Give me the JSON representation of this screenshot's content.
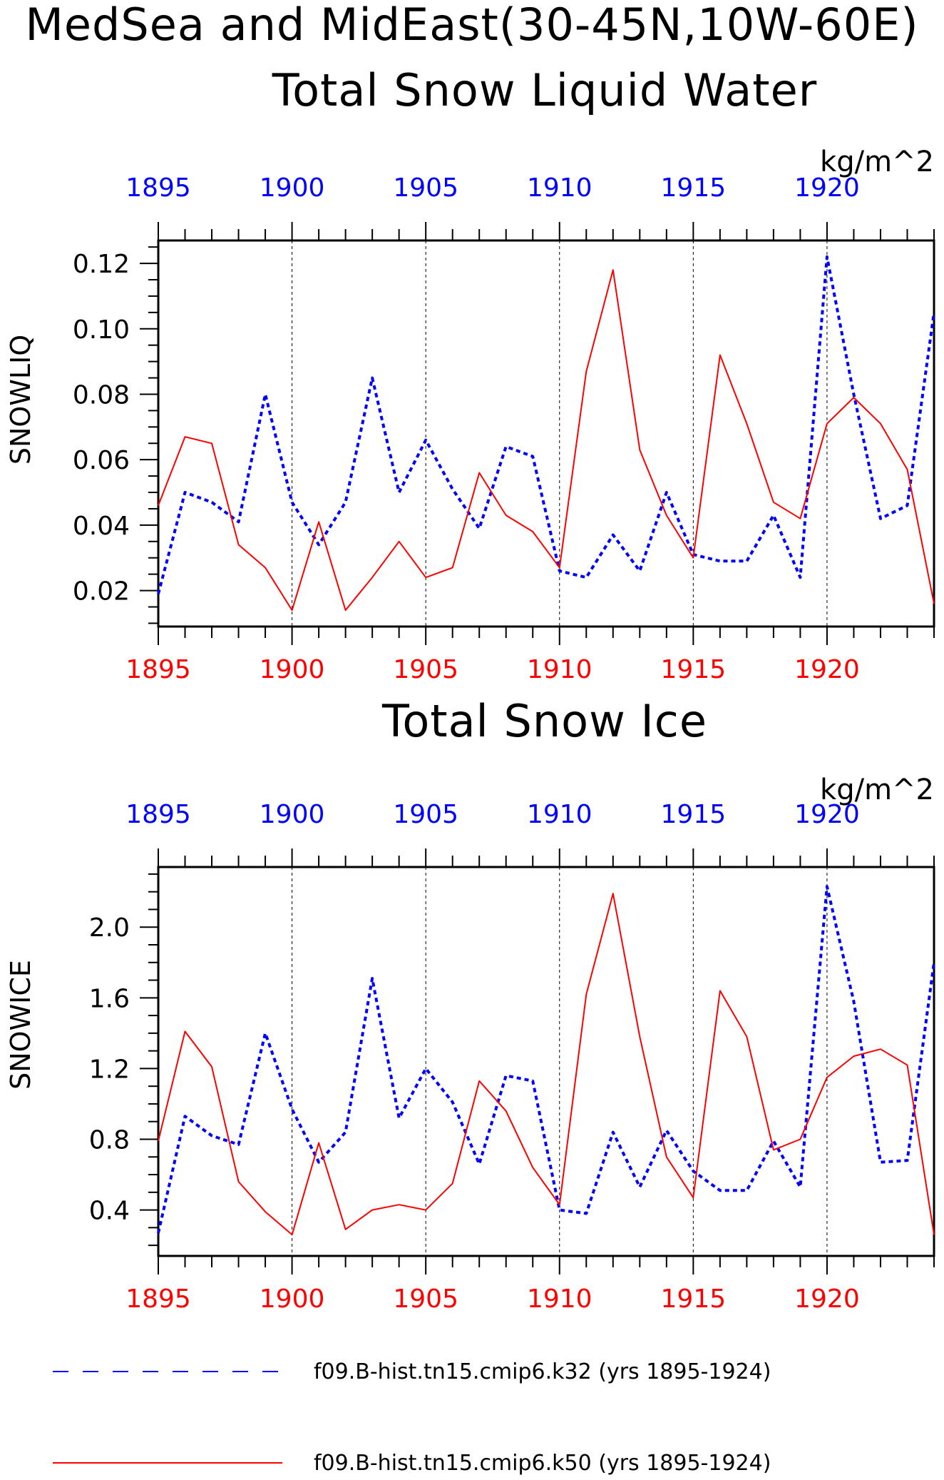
{
  "figure": {
    "title_line1": "MedSea and MidEast(30-45N,10W-60E)",
    "colors": {
      "series_k32": "#0000ff",
      "series_k50": "#ff0000",
      "axis": "#000000"
    }
  },
  "chart_data": [
    {
      "type": "line",
      "title": "Total Snow Liquid Water",
      "ylabel": "SNOWLIQ",
      "unit": "kg/m^2",
      "xlim": [
        1895,
        1924
      ],
      "ylim": [
        0.009,
        0.127
      ],
      "yticks": [
        0.12,
        0.1,
        0.08,
        0.06,
        0.04,
        0.02
      ],
      "yticklabels": [
        "0.12",
        "0.10",
        "0.08",
        "0.06",
        "0.04",
        "0.02"
      ],
      "xticks_bottom": [
        "1895",
        "1900",
        "1905",
        "1910",
        "1915",
        "1920"
      ],
      "xticks_top": [
        "1895",
        "1900",
        "1905",
        "1910",
        "1915",
        "1920"
      ],
      "x": [
        1895,
        1896,
        1897,
        1898,
        1899,
        1900,
        1901,
        1902,
        1903,
        1904,
        1905,
        1906,
        1907,
        1908,
        1909,
        1910,
        1911,
        1912,
        1913,
        1914,
        1915,
        1916,
        1917,
        1918,
        1919,
        1920,
        1921,
        1922,
        1923,
        1924
      ],
      "series": [
        {
          "name": "f09.B-hist.tn15.cmip6.k32 (yrs 1895-1924)",
          "style": "dashed",
          "color": "#0000ff",
          "values": [
            0.019,
            0.05,
            0.047,
            0.041,
            0.08,
            0.047,
            0.034,
            0.047,
            0.085,
            0.05,
            0.066,
            0.051,
            0.039,
            0.064,
            0.061,
            0.026,
            0.024,
            0.037,
            0.026,
            0.05,
            0.031,
            0.029,
            0.029,
            0.043,
            0.024,
            0.122,
            0.08,
            0.042,
            0.046,
            0.105
          ]
        },
        {
          "name": "f09.B-hist.tn15.cmip6.k50 (yrs 1895-1924)",
          "style": "solid",
          "color": "#ff0000",
          "values": [
            0.046,
            0.067,
            0.065,
            0.034,
            0.027,
            0.014,
            0.041,
            0.014,
            0.024,
            0.035,
            0.024,
            0.027,
            0.056,
            0.043,
            0.038,
            0.027,
            0.087,
            0.118,
            0.063,
            0.043,
            0.03,
            0.092,
            0.071,
            0.047,
            0.042,
            0.071,
            0.079,
            0.071,
            0.057,
            0.016
          ]
        }
      ]
    },
    {
      "type": "line",
      "title": "Total Snow Ice",
      "ylabel": "SNOWICE",
      "unit": "kg/m^2",
      "xlim": [
        1895,
        1924
      ],
      "ylim": [
        0.14,
        2.34
      ],
      "yticks": [
        2.0,
        1.6,
        1.2,
        0.8,
        0.4
      ],
      "yticklabels": [
        "2.0",
        "1.6",
        "1.2",
        "0.8",
        "0.4"
      ],
      "xticks_bottom": [
        "1895",
        "1900",
        "1905",
        "1910",
        "1915",
        "1920"
      ],
      "xticks_top": [
        "1895",
        "1900",
        "1905",
        "1910",
        "1915",
        "1920"
      ],
      "x": [
        1895,
        1896,
        1897,
        1898,
        1899,
        1900,
        1901,
        1902,
        1903,
        1904,
        1905,
        1906,
        1907,
        1908,
        1909,
        1910,
        1911,
        1912,
        1913,
        1914,
        1915,
        1916,
        1917,
        1918,
        1919,
        1920,
        1921,
        1922,
        1923,
        1924
      ],
      "series": [
        {
          "name": "f09.B-hist.tn15.cmip6.k32 (yrs 1895-1924)",
          "style": "dashed",
          "color": "#0000ff",
          "values": [
            0.27,
            0.93,
            0.82,
            0.77,
            1.4,
            0.97,
            0.67,
            0.84,
            1.71,
            0.92,
            1.2,
            1.01,
            0.66,
            1.16,
            1.13,
            0.4,
            0.38,
            0.84,
            0.53,
            0.85,
            0.62,
            0.51,
            0.51,
            0.79,
            0.53,
            2.23,
            1.58,
            0.67,
            0.68,
            1.8
          ]
        },
        {
          "name": "f09.B-hist.tn15.cmip6.k50 (yrs 1895-1924)",
          "style": "solid",
          "color": "#ff0000",
          "values": [
            0.79,
            1.41,
            1.21,
            0.56,
            0.39,
            0.26,
            0.78,
            0.29,
            0.4,
            0.43,
            0.4,
            0.55,
            1.13,
            0.96,
            0.64,
            0.43,
            1.62,
            2.19,
            1.38,
            0.7,
            0.47,
            1.64,
            1.38,
            0.74,
            0.8,
            1.15,
            1.27,
            1.31,
            1.22,
            0.26
          ]
        }
      ]
    }
  ],
  "legend": [
    {
      "label": "f09.B-hist.tn15.cmip6.k32 (yrs 1895-1924)",
      "style": "dashed",
      "color": "#0000ff"
    },
    {
      "label": "f09.B-hist.tn15.cmip6.k50 (yrs 1895-1924)",
      "style": "solid",
      "color": "#ff0000"
    }
  ]
}
